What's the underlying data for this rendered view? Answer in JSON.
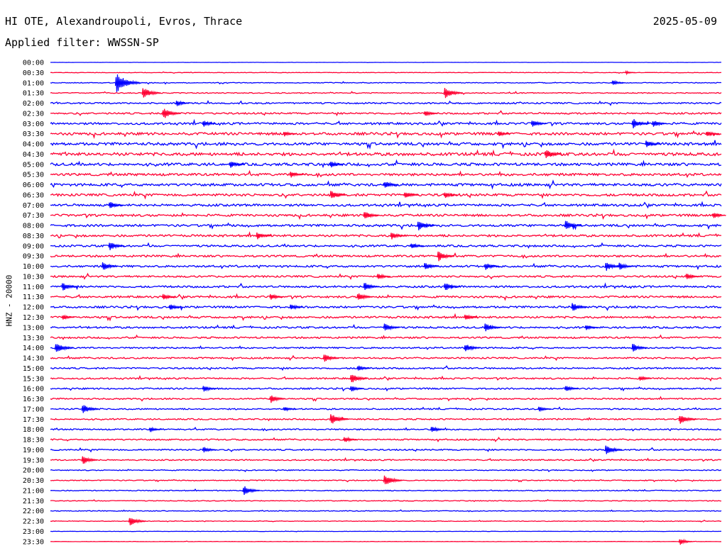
{
  "header": {
    "title": "HI OTE, Alexandroupoli, Evros, Thrace",
    "date": "2025-05-09",
    "filter": "Applied filter: WWSSN-SP"
  },
  "y_axis_label": "HNZ - 20000",
  "colors": {
    "odd_trace": "#0000ff",
    "even_trace": "#ff0033",
    "text": "#000000",
    "background": "#ffffff"
  },
  "chart_data": {
    "type": "line",
    "description_kind": "helicorder",
    "rows": [
      "00:00",
      "00:30",
      "01:00",
      "01:30",
      "02:00",
      "02:30",
      "03:00",
      "03:30",
      "04:00",
      "04:30",
      "05:00",
      "05:30",
      "06:00",
      "06:30",
      "07:00",
      "07:30",
      "08:00",
      "08:30",
      "09:00",
      "09:30",
      "10:00",
      "10:30",
      "11:00",
      "11:30",
      "12:00",
      "12:30",
      "13:00",
      "13:30",
      "14:00",
      "14:30",
      "15:00",
      "15:30",
      "16:00",
      "16:30",
      "17:00",
      "17:30",
      "18:00",
      "18:30",
      "19:00",
      "19:30",
      "20:00",
      "20:30",
      "21:00",
      "21:30",
      "22:00",
      "22:30",
      "23:00",
      "23:30"
    ],
    "noise_level": [
      0.2,
      0.6,
      1.0,
      1.2,
      2.0,
      2.2,
      2.8,
      3.4,
      3.6,
      4.0,
      3.6,
      3.2,
      3.4,
      3.2,
      3.0,
      3.0,
      3.0,
      2.8,
      2.6,
      2.6,
      2.6,
      2.4,
      2.6,
      2.6,
      2.6,
      2.6,
      2.4,
      2.2,
      2.0,
      2.0,
      2.0,
      2.0,
      2.0,
      1.8,
      1.8,
      1.8,
      1.8,
      1.8,
      1.8,
      1.6,
      1.2,
      1.2,
      1.2,
      1.0,
      1.0,
      0.8,
      0.4,
      0.4
    ],
    "events": [
      {
        "row": 1,
        "t": 0.86,
        "amp": 3
      },
      {
        "row": 2,
        "t": 0.1,
        "amp": 16
      },
      {
        "row": 2,
        "t": 0.84,
        "amp": 5
      },
      {
        "row": 3,
        "t": 0.14,
        "amp": 10
      },
      {
        "row": 3,
        "t": 0.59,
        "amp": 10
      },
      {
        "row": 4,
        "t": 0.19,
        "amp": 6
      },
      {
        "row": 5,
        "t": 0.17,
        "amp": 10
      },
      {
        "row": 5,
        "t": 0.56,
        "amp": 6
      },
      {
        "row": 6,
        "t": 0.23,
        "amp": 6
      },
      {
        "row": 6,
        "t": 0.72,
        "amp": 7
      },
      {
        "row": 6,
        "t": 0.87,
        "amp": 9
      },
      {
        "row": 6,
        "t": 0.9,
        "amp": 7
      },
      {
        "row": 7,
        "t": 0.35,
        "amp": 5
      },
      {
        "row": 7,
        "t": 0.67,
        "amp": 5
      },
      {
        "row": 7,
        "t": 0.98,
        "amp": 6
      },
      {
        "row": 8,
        "t": 0.89,
        "amp": 7
      },
      {
        "row": 9,
        "t": 0.74,
        "amp": 9
      },
      {
        "row": 10,
        "t": 0.27,
        "amp": 7
      },
      {
        "row": 10,
        "t": 0.42,
        "amp": 6
      },
      {
        "row": 11,
        "t": 0.36,
        "amp": 6
      },
      {
        "row": 12,
        "t": 0.5,
        "amp": 7
      },
      {
        "row": 13,
        "t": 0.42,
        "amp": 8
      },
      {
        "row": 13,
        "t": 0.53,
        "amp": 7
      },
      {
        "row": 13,
        "t": 0.59,
        "amp": 6
      },
      {
        "row": 14,
        "t": 0.09,
        "amp": 7
      },
      {
        "row": 15,
        "t": 0.47,
        "amp": 8
      },
      {
        "row": 15,
        "t": 0.99,
        "amp": 6
      },
      {
        "row": 16,
        "t": 0.55,
        "amp": 9
      },
      {
        "row": 16,
        "t": 0.77,
        "amp": 9
      },
      {
        "row": 17,
        "t": 0.31,
        "amp": 7
      },
      {
        "row": 17,
        "t": 0.51,
        "amp": 7
      },
      {
        "row": 18,
        "t": 0.09,
        "amp": 8
      },
      {
        "row": 18,
        "t": 0.54,
        "amp": 6
      },
      {
        "row": 19,
        "t": 0.58,
        "amp": 9
      },
      {
        "row": 20,
        "t": 0.08,
        "amp": 8
      },
      {
        "row": 20,
        "t": 0.56,
        "amp": 7
      },
      {
        "row": 20,
        "t": 0.65,
        "amp": 7
      },
      {
        "row": 20,
        "t": 0.83,
        "amp": 8
      },
      {
        "row": 20,
        "t": 0.85,
        "amp": 7
      },
      {
        "row": 21,
        "t": 0.49,
        "amp": 6
      },
      {
        "row": 21,
        "t": 0.95,
        "amp": 6
      },
      {
        "row": 22,
        "t": 0.02,
        "amp": 8
      },
      {
        "row": 22,
        "t": 0.47,
        "amp": 8
      },
      {
        "row": 22,
        "t": 0.59,
        "amp": 8
      },
      {
        "row": 23,
        "t": 0.17,
        "amp": 6
      },
      {
        "row": 23,
        "t": 0.33,
        "amp": 6
      },
      {
        "row": 23,
        "t": 0.46,
        "amp": 8
      },
      {
        "row": 24,
        "t": 0.18,
        "amp": 6
      },
      {
        "row": 24,
        "t": 0.36,
        "amp": 6
      },
      {
        "row": 24,
        "t": 0.78,
        "amp": 8
      },
      {
        "row": 25,
        "t": 0.02,
        "amp": 5
      },
      {
        "row": 25,
        "t": 0.62,
        "amp": 6
      },
      {
        "row": 26,
        "t": 0.5,
        "amp": 8
      },
      {
        "row": 26,
        "t": 0.65,
        "amp": 8
      },
      {
        "row": 26,
        "t": 0.8,
        "amp": 5
      },
      {
        "row": 28,
        "t": 0.01,
        "amp": 10
      },
      {
        "row": 28,
        "t": 0.62,
        "amp": 8
      },
      {
        "row": 28,
        "t": 0.87,
        "amp": 8
      },
      {
        "row": 29,
        "t": 0.41,
        "amp": 8
      },
      {
        "row": 30,
        "t": 0.46,
        "amp": 6
      },
      {
        "row": 31,
        "t": 0.45,
        "amp": 9
      },
      {
        "row": 31,
        "t": 0.88,
        "amp": 5
      },
      {
        "row": 32,
        "t": 0.23,
        "amp": 6
      },
      {
        "row": 32,
        "t": 0.45,
        "amp": 6
      },
      {
        "row": 32,
        "t": 0.77,
        "amp": 6
      },
      {
        "row": 33,
        "t": 0.33,
        "amp": 8
      },
      {
        "row": 34,
        "t": 0.05,
        "amp": 9
      },
      {
        "row": 34,
        "t": 0.35,
        "amp": 5
      },
      {
        "row": 34,
        "t": 0.73,
        "amp": 5
      },
      {
        "row": 35,
        "t": 0.42,
        "amp": 10
      },
      {
        "row": 35,
        "t": 0.94,
        "amp": 9
      },
      {
        "row": 36,
        "t": 0.15,
        "amp": 5
      },
      {
        "row": 36,
        "t": 0.57,
        "amp": 6
      },
      {
        "row": 37,
        "t": 0.44,
        "amp": 6
      },
      {
        "row": 38,
        "t": 0.23,
        "amp": 6
      },
      {
        "row": 38,
        "t": 0.83,
        "amp": 9
      },
      {
        "row": 39,
        "t": 0.05,
        "amp": 8
      },
      {
        "row": 41,
        "t": 0.5,
        "amp": 10
      },
      {
        "row": 42,
        "t": 0.29,
        "amp": 9
      },
      {
        "row": 45,
        "t": 0.12,
        "amp": 9
      },
      {
        "row": 47,
        "t": 0.94,
        "amp": 6
      }
    ]
  }
}
